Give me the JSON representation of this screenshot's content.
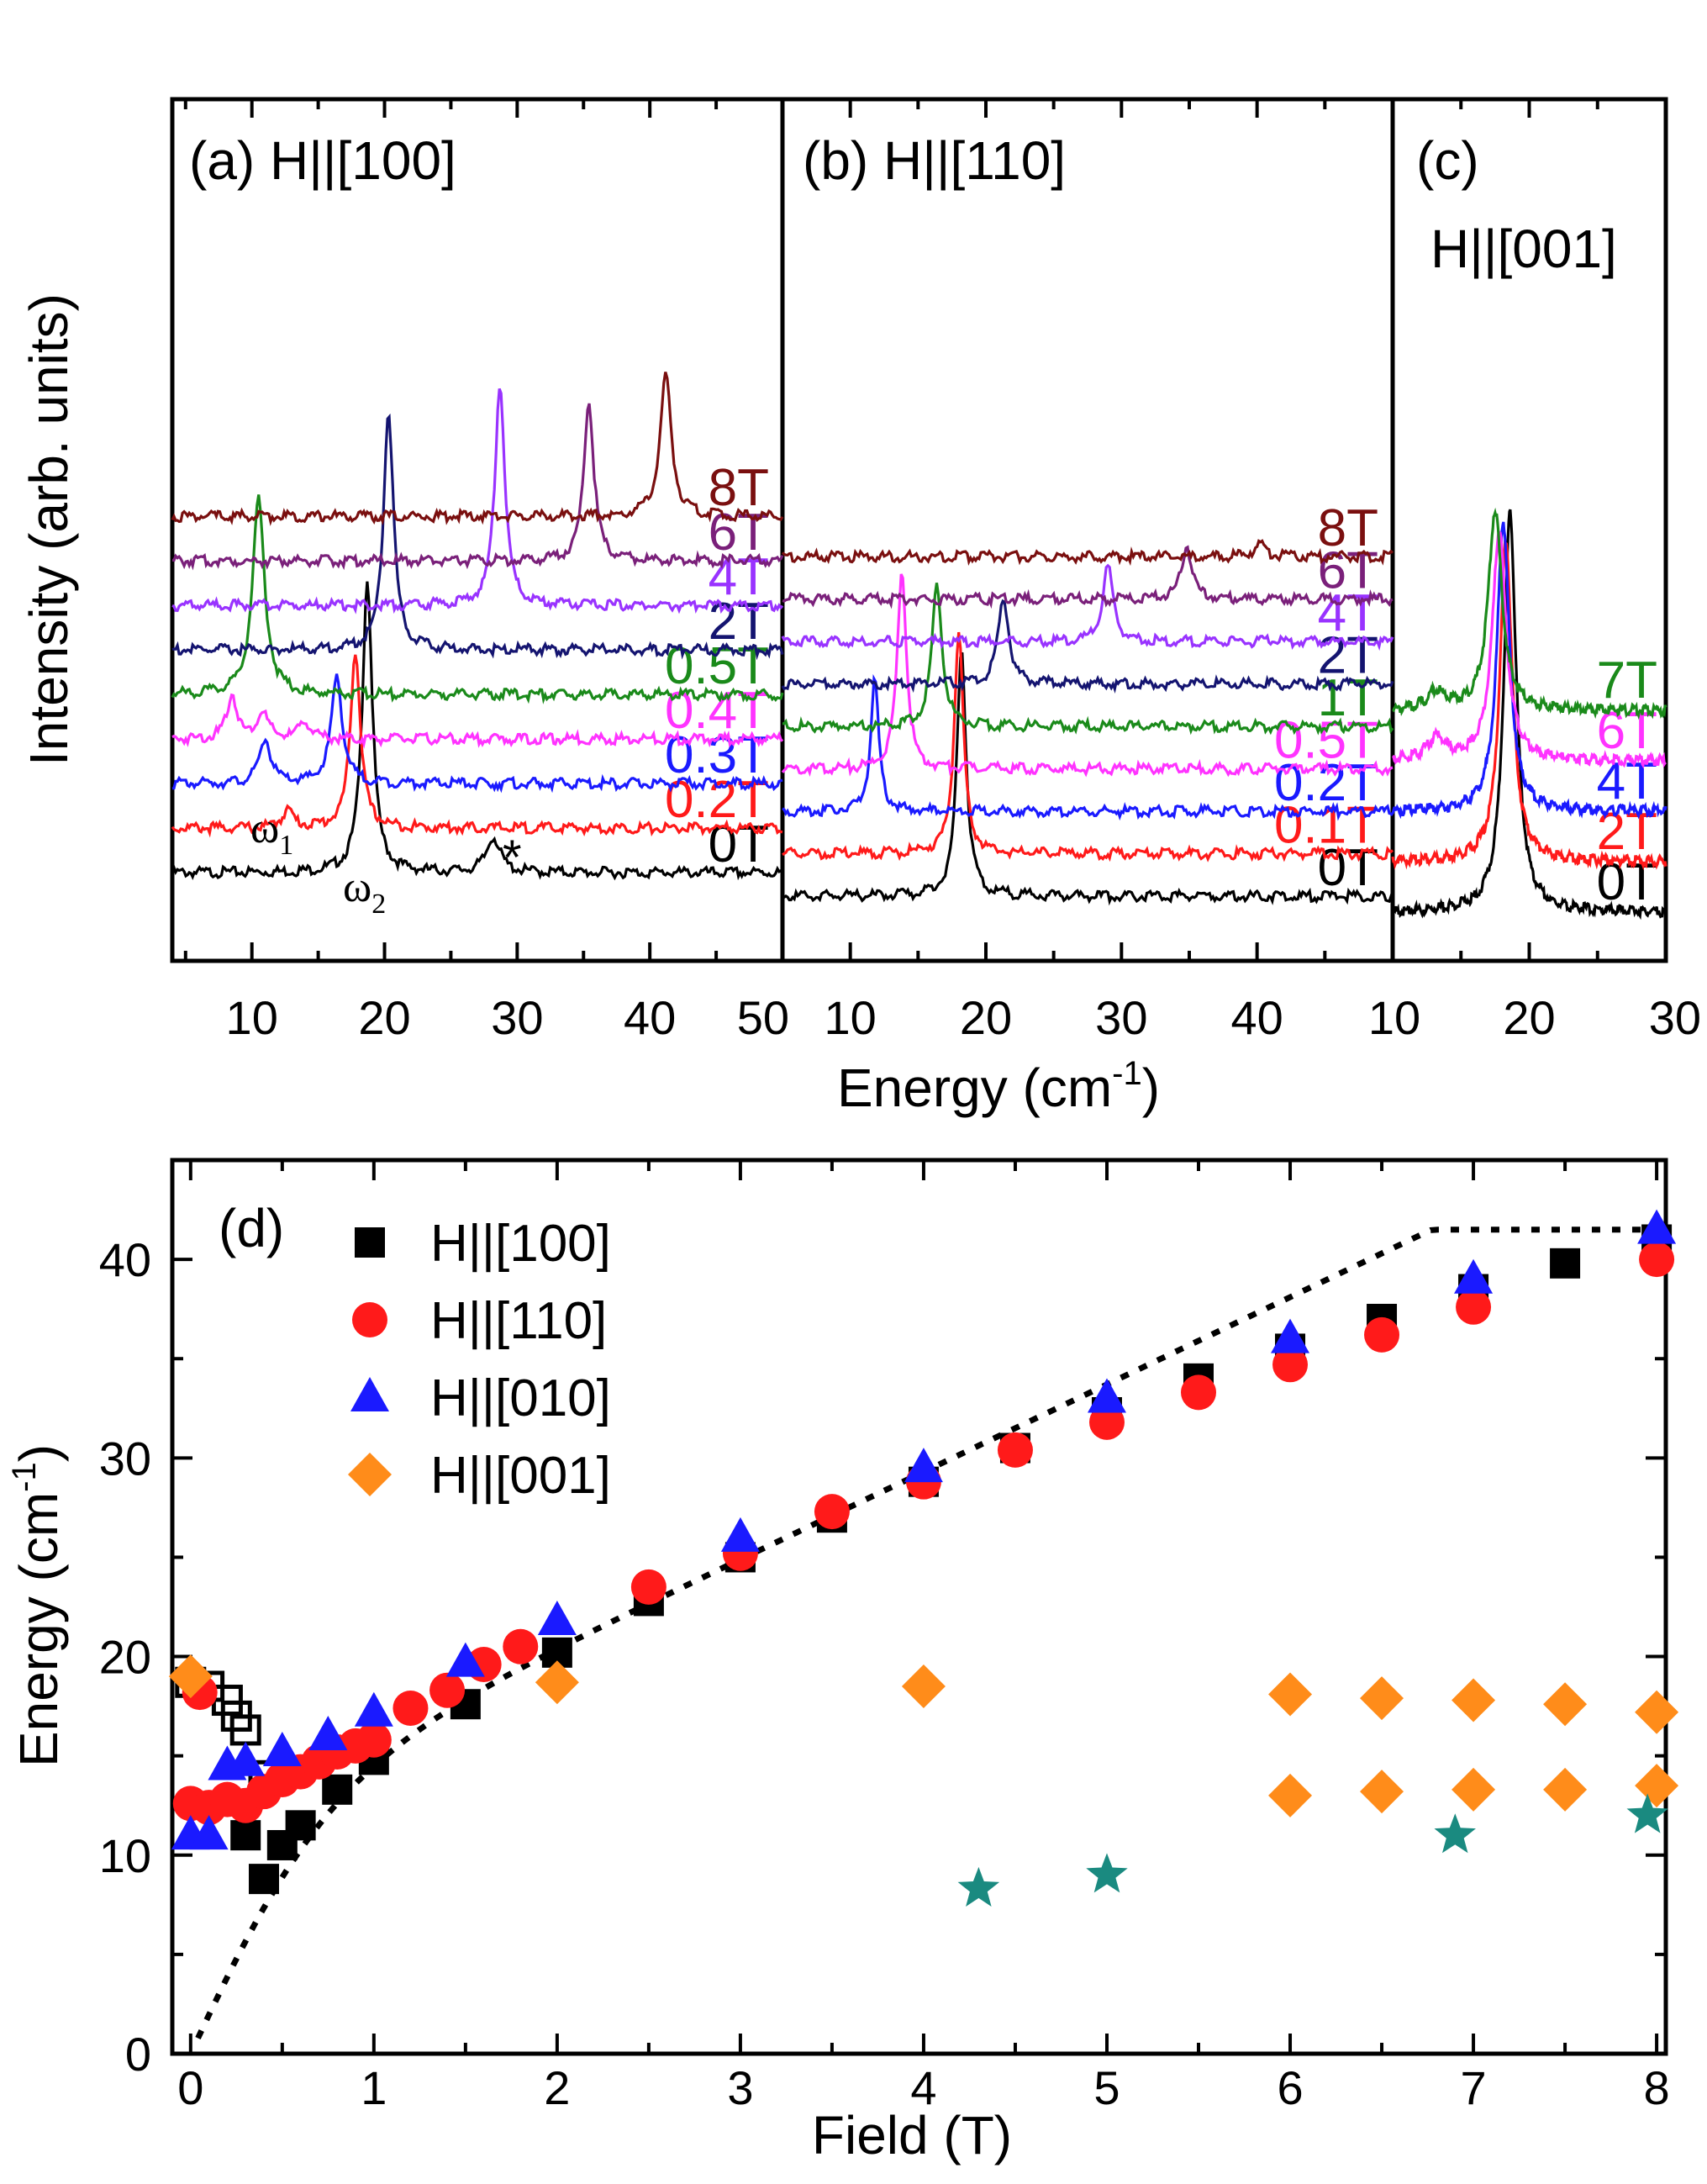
{
  "colors": {
    "black": "#000000",
    "red": "#ff1a1a",
    "blue": "#1a1aff",
    "magenta": "#ff33ff",
    "green": "#1a8a1a",
    "navy": "#141470",
    "violet": "#9933ff",
    "purple": "#7a207a",
    "maroon": "#7a0f0f",
    "orange": "#ff8c1a",
    "teal": "#1a8a80"
  },
  "chart_data": [
    {
      "type": "line",
      "panel": "a",
      "title": "(a) H||[100]",
      "xlabel": "Energy (cm-1)",
      "ylabel": "Intensity (arb. units)",
      "xlim": [
        4,
        50
      ],
      "xticks": [
        "10",
        "20",
        "30",
        "40",
        "50"
      ],
      "offsets": [
        0,
        1,
        2,
        3,
        4,
        5,
        6,
        7,
        8
      ],
      "annotations": {
        "w1": "ω",
        "w1_sub": "1",
        "w2": "ω",
        "w2_sub": "2",
        "star": "*"
      },
      "series": [
        {
          "name": "0T",
          "color": "#000000",
          "peaks": [
            [
              18.7,
              6.6,
              0.45
            ],
            [
              28.2,
              0.8,
              0.6
            ]
          ]
        },
        {
          "name": "0.2T",
          "color": "#ff1a1a",
          "peaks": [
            [
              17.8,
              4.0,
              0.45
            ],
            [
              12.7,
              0.4,
              0.5
            ]
          ]
        },
        {
          "name": "0.3T",
          "color": "#1a1aff",
          "peaks": [
            [
              16.4,
              2.4,
              0.5
            ],
            [
              11.0,
              1.0,
              0.5
            ]
          ]
        },
        {
          "name": "0.4T",
          "color": "#ff33ff",
          "peaks": [
            [
              8.5,
              1.0,
              0.45
            ],
            [
              10.8,
              0.6,
              0.5
            ],
            [
              14.0,
              0.4,
              0.5
            ]
          ]
        },
        {
          "name": "0.5T",
          "color": "#1a8a1a",
          "peaks": [
            [
              10.5,
              4.4,
              0.55
            ]
          ]
        },
        {
          "name": "2T",
          "color": "#141470",
          "peaks": [
            [
              20.3,
              5.4,
              0.45
            ]
          ]
        },
        {
          "name": "4T",
          "color": "#9933ff",
          "peaks": [
            [
              28.7,
              5.0,
              0.45
            ]
          ]
        },
        {
          "name": "6T",
          "color": "#7a207a",
          "peaks": [
            [
              35.4,
              3.6,
              0.45
            ]
          ]
        },
        {
          "name": "8T",
          "color": "#7a0f0f",
          "peaks": [
            [
              41.2,
              3.2,
              0.5
            ]
          ]
        }
      ]
    },
    {
      "type": "line",
      "panel": "b",
      "title": "(b) H||[110]",
      "xlabel": "Energy (cm-1)",
      "xlim": [
        5,
        50
      ],
      "xticks": [
        "10",
        "20",
        "30",
        "40"
      ],
      "offsets": [
        0,
        1,
        2,
        3,
        4,
        5,
        6,
        7,
        8
      ],
      "series": [
        {
          "name": "0T",
          "color": "#000000",
          "peaks": [
            [
              18.2,
              5.6,
              0.4
            ]
          ]
        },
        {
          "name": "0.1T",
          "color": "#ff1a1a",
          "peaks": [
            [
              18.0,
              5.0,
              0.4
            ]
          ]
        },
        {
          "name": "0.2T",
          "color": "#1a1aff",
          "peaks": [
            [
              11.8,
              3.0,
              0.35
            ]
          ]
        },
        {
          "name": "0.5T",
          "color": "#ff33ff",
          "peaks": [
            [
              13.8,
              4.5,
              0.4
            ]
          ]
        },
        {
          "name": "1T",
          "color": "#1a8a1a",
          "peaks": [
            [
              16.4,
              3.2,
              0.45
            ]
          ]
        },
        {
          "name": "2T",
          "color": "#141470",
          "peaks": [
            [
              21.3,
              2.0,
              0.45
            ]
          ]
        },
        {
          "name": "4T",
          "color": "#9933ff",
          "peaks": [
            [
              29.0,
              1.7,
              0.45
            ]
          ]
        },
        {
          "name": "6T",
          "color": "#7a207a",
          "peaks": [
            [
              34.8,
              1.2,
              0.45
            ]
          ]
        },
        {
          "name": "8T",
          "color": "#7a0f0f",
          "peaks": [
            [
              40.2,
              0.3,
              0.5
            ]
          ]
        }
      ]
    },
    {
      "type": "line",
      "panel": "c",
      "title": "(c)",
      "subtitle": "H||[001]",
      "xlabel": "Energy (cm-1)",
      "xlim": [
        10,
        30
      ],
      "xticks": [
        "10",
        "20",
        "30"
      ],
      "offsets": [
        0,
        1,
        2,
        3,
        4
      ],
      "series": [
        {
          "name": "0T",
          "color": "#000000",
          "peaks": [
            [
              18.6,
              9.0,
              0.55
            ]
          ]
        },
        {
          "name": "2T",
          "color": "#ff1a1a",
          "peaks": [
            [
              18.3,
              7.2,
              0.55
            ]
          ]
        },
        {
          "name": "4T",
          "color": "#1a1aff",
          "peaks": [
            [
              18.1,
              6.5,
              0.55
            ]
          ]
        },
        {
          "name": "6T",
          "color": "#ff33ff",
          "peaks": [
            [
              17.8,
              5.2,
              0.6
            ],
            [
              13.2,
              0.5,
              0.8
            ]
          ]
        },
        {
          "name": "7T",
          "color": "#1a8a1a",
          "peaks": [
            [
              17.5,
              4.5,
              0.6
            ],
            [
              13.2,
              0.4,
              0.8
            ]
          ]
        }
      ]
    },
    {
      "type": "scatter",
      "panel": "d",
      "title": "(d)",
      "xlabel": "Field (T)",
      "ylabel": "Energy (cm-1)",
      "xlim": [
        -0.1,
        8.05
      ],
      "ylim": [
        0,
        45
      ],
      "xticks": [
        "0",
        "1",
        "2",
        "3",
        "4",
        "5",
        "6",
        "7",
        "8"
      ],
      "yticks": [
        "0",
        "10",
        "20",
        "30",
        "40"
      ],
      "series": [
        {
          "name": "H||[100]",
          "marker": "square",
          "color": "#000000",
          "x": [
            0.3,
            0.4,
            0.5,
            0.6,
            0.8,
            1.0,
            1.5,
            2.0,
            2.5,
            3.0,
            3.5,
            4.0,
            4.5,
            5.0,
            5.5,
            6.0,
            6.5,
            7.0,
            7.5,
            8.0
          ],
          "y": [
            11.0,
            8.8,
            10.5,
            11.5,
            13.3,
            14.8,
            17.6,
            20.2,
            22.8,
            25.0,
            27.0,
            28.8,
            30.5,
            32.3,
            34.0,
            35.5,
            37.0,
            38.5,
            39.8,
            41.0
          ]
        },
        {
          "name": "H||[100] open",
          "marker": "open-square",
          "color": "#000000",
          "x": [
            0.0,
            0.1,
            0.2,
            0.25,
            0.3,
            0.4
          ],
          "y": [
            18.7,
            18.5,
            17.8,
            17.0,
            16.3,
            14.0
          ]
        },
        {
          "name": "H||[110]",
          "marker": "circle",
          "color": "#ff1a1a",
          "x": [
            0.0,
            0.05,
            0.1,
            0.2,
            0.3,
            0.4,
            0.5,
            0.6,
            0.7,
            0.8,
            0.9,
            1.0,
            1.2,
            1.4,
            1.6,
            1.8,
            2.5,
            3.0,
            3.5,
            4.0,
            4.5,
            5.0,
            5.5,
            6.0,
            6.5,
            7.0,
            8.0
          ],
          "y": [
            12.6,
            18.2,
            12.4,
            12.8,
            12.5,
            13.2,
            13.8,
            14.2,
            14.7,
            15.2,
            15.5,
            15.8,
            17.4,
            18.3,
            19.6,
            20.5,
            23.5,
            25.2,
            27.3,
            28.8,
            30.4,
            31.8,
            33.3,
            34.7,
            36.2,
            37.6,
            40.0
          ]
        },
        {
          "name": "H||[010]",
          "marker": "triangle",
          "color": "#1a1aff",
          "x": [
            0.0,
            0.1,
            0.2,
            0.3,
            0.5,
            0.75,
            1.0,
            1.5,
            2.0,
            3.0,
            4.0,
            5.0,
            6.0,
            7.0,
            8.0
          ],
          "y": [
            11.0,
            11.0,
            14.5,
            14.7,
            15.2,
            16.0,
            17.2,
            19.7,
            21.8,
            26.0,
            29.5,
            33.0,
            36.0,
            39.0,
            41.5
          ]
        },
        {
          "name": "H||[001]",
          "marker": "diamond",
          "color": "#ff8c1a",
          "x": [
            0.0,
            2.0,
            4.0,
            6.0,
            6.5,
            7.0,
            7.5,
            8.0,
            6.0,
            6.5,
            7.0,
            7.5,
            8.0
          ],
          "y": [
            19.0,
            18.7,
            18.5,
            18.1,
            17.9,
            17.8,
            17.6,
            17.2,
            13.0,
            13.2,
            13.3,
            13.3,
            13.5
          ]
        },
        {
          "name": "stars",
          "marker": "star",
          "color": "#1a8a80",
          "x": [
            4.3,
            5.0,
            6.9,
            7.95
          ],
          "y": [
            8.3,
            9.0,
            11.0,
            12.0
          ]
        }
      ],
      "legend": [
        "H||[100]",
        "H||[110]",
        "H||[010]",
        "H||[001]"
      ],
      "fit_line": {
        "style": "dotted",
        "color": "#000000"
      }
    }
  ]
}
